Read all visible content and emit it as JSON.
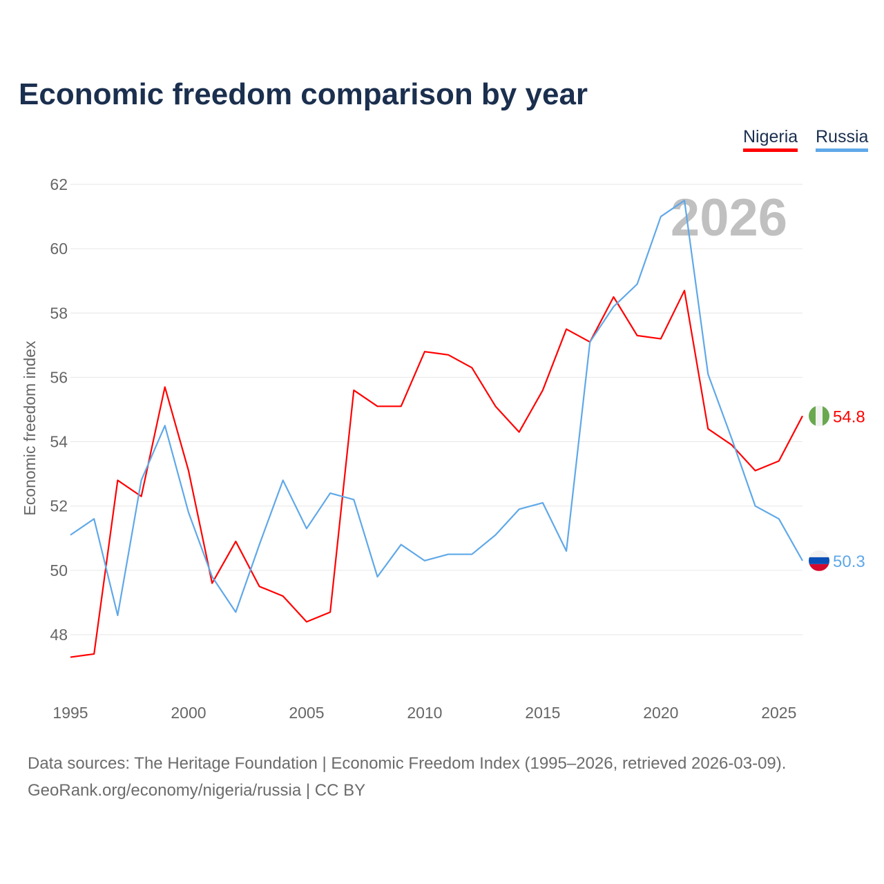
{
  "title": "Economic freedom comparison by year",
  "legend": [
    {
      "label": "Nigeria"
    },
    {
      "label": "Russia"
    }
  ],
  "footer": {
    "line1": "Data sources: The Heritage Foundation | Economic Freedom Index (1995–2026, retrieved 2026-03-09).",
    "line2": "GeoRank.org/economy/nigeria/russia | CC BY"
  },
  "chart_data": {
    "type": "line",
    "title": "Economic freedom comparison by year",
    "ylabel": "Economic freedom index",
    "xlabel": "",
    "year_watermark": "2026",
    "x": [
      1995,
      1996,
      1997,
      1998,
      1999,
      2000,
      2001,
      2002,
      2003,
      2004,
      2005,
      2006,
      2007,
      2008,
      2009,
      2010,
      2011,
      2012,
      2013,
      2014,
      2015,
      2016,
      2017,
      2018,
      2019,
      2020,
      2021,
      2022,
      2023,
      2024,
      2025,
      2026
    ],
    "xticks": [
      "1995",
      "2000",
      "2005",
      "2010",
      "2015",
      "2020",
      "2025"
    ],
    "yticks": [
      "48",
      "50",
      "52",
      "54",
      "56",
      "58",
      "60",
      "62"
    ],
    "ylim": [
      46,
      62.5
    ],
    "grid": true,
    "legend_position": "top-right",
    "series": [
      {
        "name": "Nigeria",
        "color": "#ff0000",
        "end_label": "54.8",
        "values": [
          47.3,
          47.4,
          52.8,
          52.3,
          55.7,
          53.1,
          49.6,
          50.9,
          49.5,
          49.2,
          48.4,
          48.7,
          55.6,
          55.1,
          55.1,
          56.8,
          56.7,
          56.3,
          55.1,
          54.3,
          55.6,
          57.5,
          57.1,
          58.5,
          57.3,
          57.2,
          58.7,
          54.4,
          53.9,
          53.1,
          53.4,
          54.8
        ]
      },
      {
        "name": "Russia",
        "color": "#5fa8e8",
        "end_label": "50.3",
        "values": [
          51.1,
          51.6,
          48.6,
          52.8,
          54.5,
          51.8,
          49.8,
          48.7,
          50.8,
          52.8,
          51.3,
          52.4,
          52.2,
          49.8,
          50.8,
          50.3,
          50.5,
          50.5,
          51.1,
          51.9,
          52.1,
          50.6,
          57.1,
          58.2,
          58.9,
          61.0,
          61.5,
          56.1,
          54.1,
          52.0,
          51.6,
          50.3
        ]
      }
    ]
  }
}
